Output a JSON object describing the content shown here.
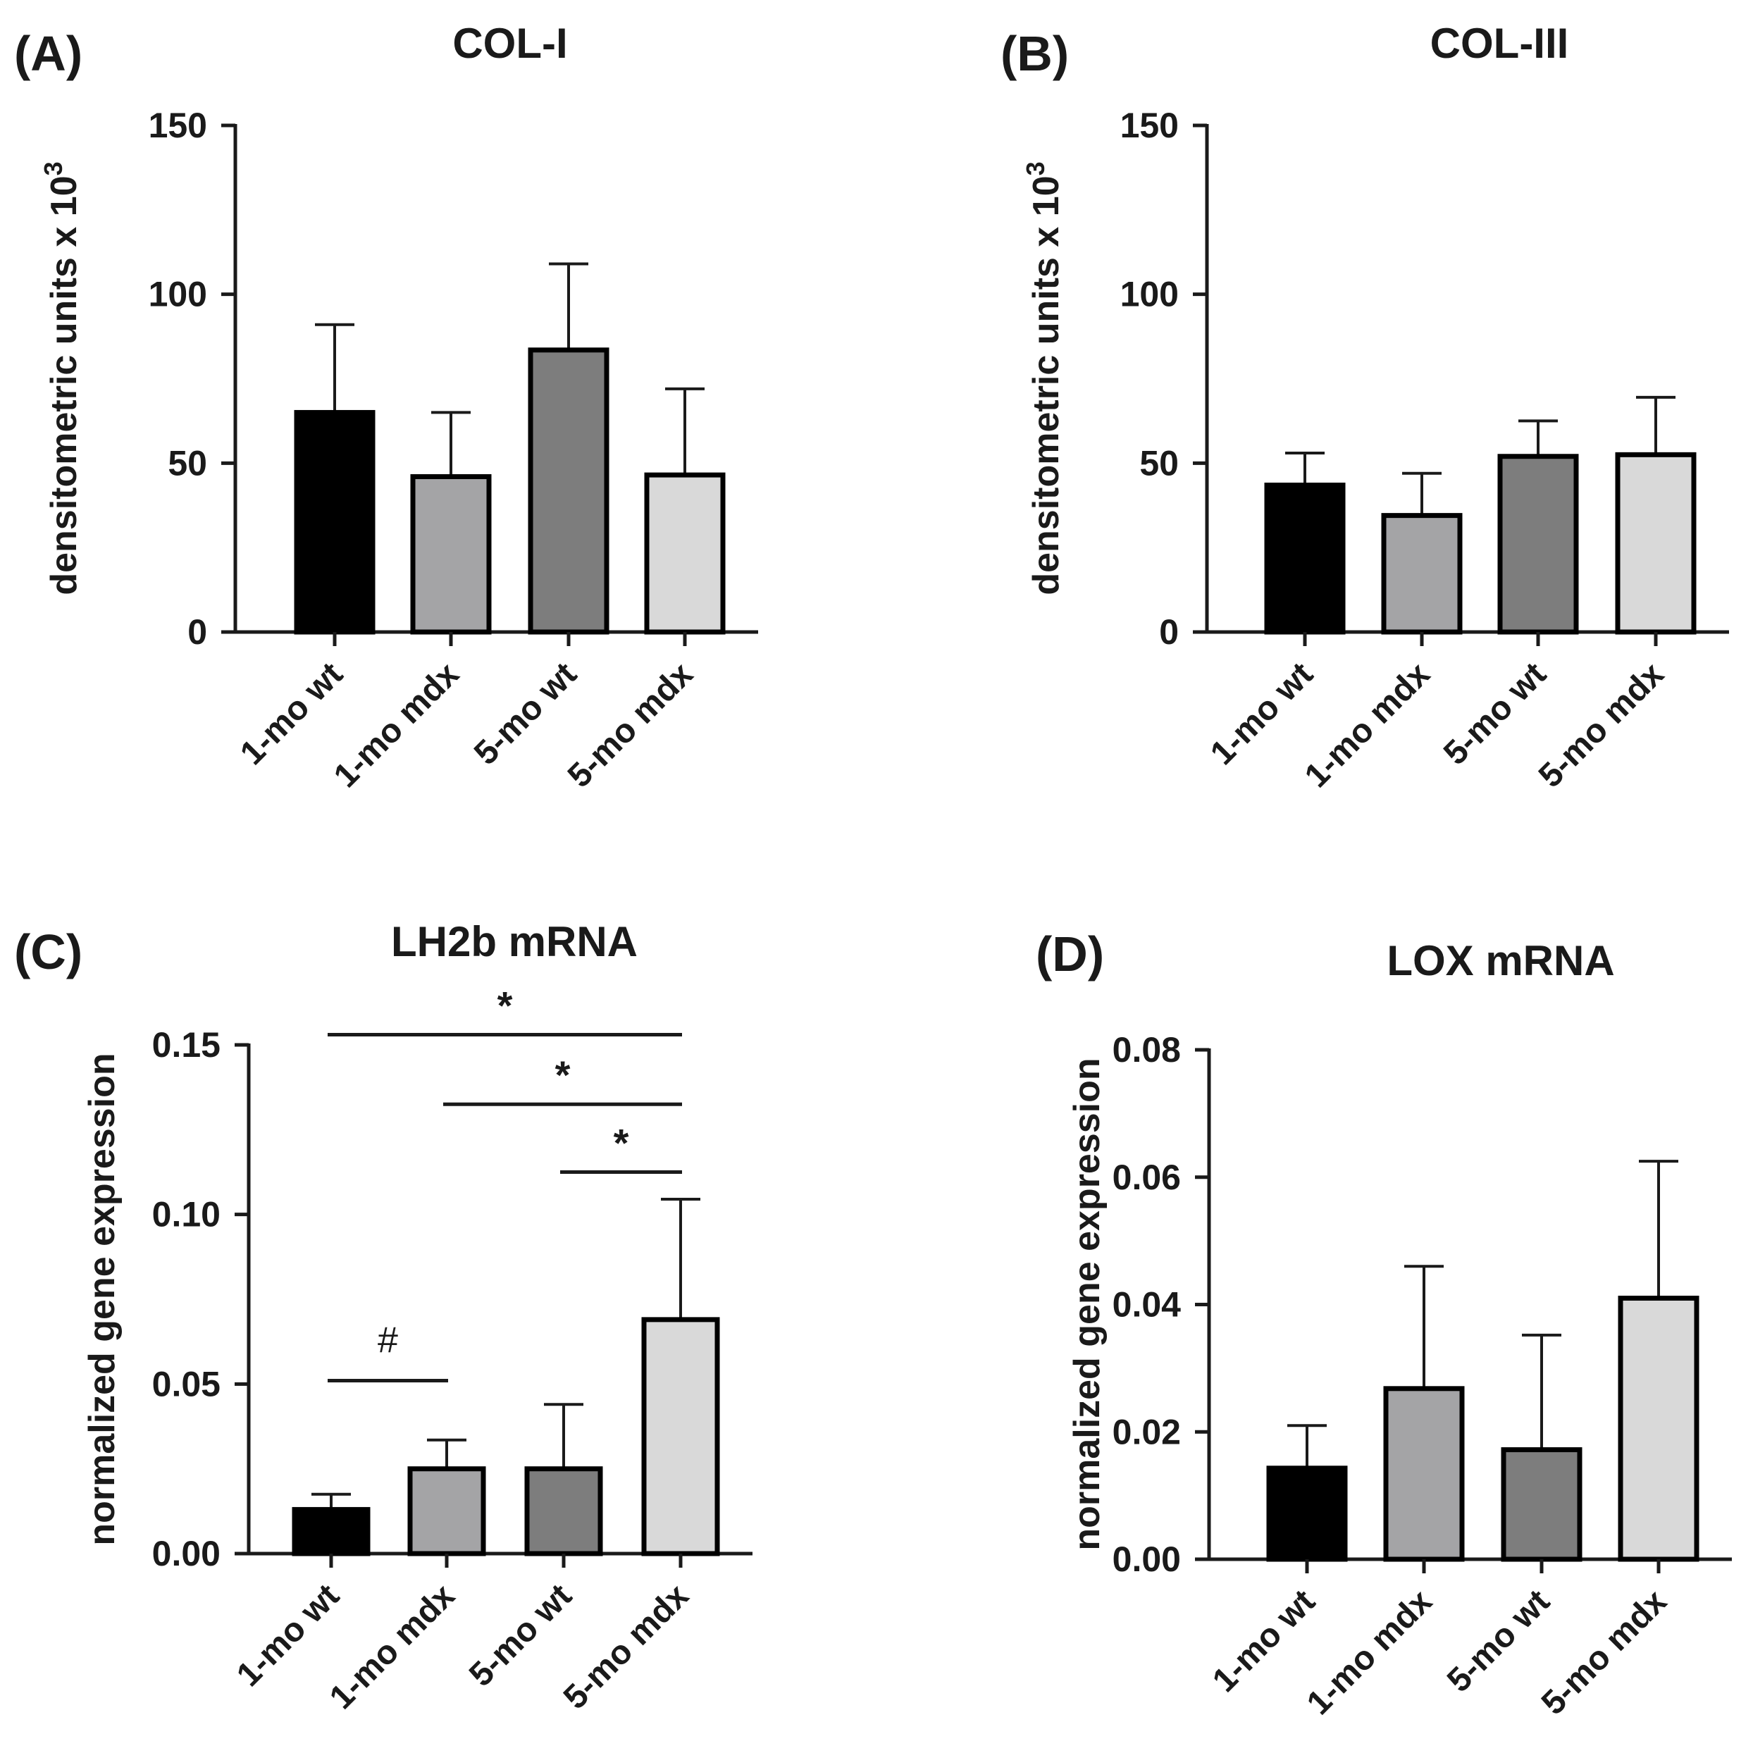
{
  "chart_data": [
    {
      "panel": "(A)",
      "type": "bar",
      "title": "COL-I",
      "ylabel": "densitometric units x 10",
      "ylabel_superscript": "3",
      "xlabel": "",
      "ylim": [
        0,
        150
      ],
      "yticks": [
        0,
        50,
        100,
        150
      ],
      "ytick_labels": [
        "0",
        "50",
        "100",
        "150"
      ],
      "categories": [
        "1-mo wt",
        "1-mo mdx",
        "5-mo wt",
        "5-mo mdx"
      ],
      "values": [
        65,
        46,
        83.5,
        46.5
      ],
      "errors": [
        26,
        19,
        25.5,
        25.5
      ],
      "colors": [
        "#000000",
        "#a4a4a6",
        "#7d7d7d",
        "#d9d9d9"
      ],
      "significance": []
    },
    {
      "panel": "(B)",
      "type": "bar",
      "title": "COL-III",
      "ylabel": "densitometric units x 10",
      "ylabel_superscript": "3",
      "xlabel": "",
      "ylim": [
        0,
        150
      ],
      "yticks": [
        0,
        50,
        100,
        150
      ],
      "ytick_labels": [
        "0",
        "50",
        "100",
        "150"
      ],
      "categories": [
        "1-mo wt",
        "1-mo mdx",
        "5-mo wt",
        "5-mo mdx"
      ],
      "values": [
        43.5,
        34.5,
        52,
        52.5
      ],
      "errors": [
        9.5,
        12.5,
        10.5,
        17
      ],
      "colors": [
        "#000000",
        "#a4a4a6",
        "#7d7d7d",
        "#d9d9d9"
      ],
      "significance": []
    },
    {
      "panel": "(C)",
      "type": "bar",
      "title": "LH2b mRNA",
      "ylabel": "normalized gene expression",
      "ylabel_superscript": "",
      "xlabel": "",
      "ylim": [
        0,
        0.15
      ],
      "yticks": [
        0,
        0.05,
        0.1,
        0.15
      ],
      "ytick_labels": [
        "0.00",
        "0.05",
        "0.10",
        "0.15"
      ],
      "categories": [
        "1-mo wt",
        "1-mo mdx",
        "5-mo wt",
        "5-mo mdx"
      ],
      "values": [
        0.013,
        0.025,
        0.025,
        0.069
      ],
      "errors": [
        0.0045,
        0.0085,
        0.019,
        0.0355
      ],
      "colors": [
        "#000000",
        "#a4a4a6",
        "#7d7d7d",
        "#d9d9d9"
      ],
      "significance": [
        {
          "from": 0,
          "to": 3,
          "y": 0.153,
          "label": "*"
        },
        {
          "from": 1,
          "to": 3,
          "y": 0.1325,
          "label": "*"
        },
        {
          "from": 2,
          "to": 3,
          "y": 0.1125,
          "label": "*"
        },
        {
          "from": 0,
          "to": 1,
          "y": 0.051,
          "label": "#"
        }
      ]
    },
    {
      "panel": "(D)",
      "type": "bar",
      "title": "LOX mRNA",
      "ylabel": "normalized gene expression",
      "ylabel_superscript": "",
      "xlabel": "",
      "ylim": [
        0,
        0.08
      ],
      "yticks": [
        0,
        0.02,
        0.04,
        0.06,
        0.08
      ],
      "ytick_labels": [
        "0.00",
        "0.02",
        "0.04",
        "0.06",
        "0.08"
      ],
      "categories": [
        "1-mo wt",
        "1-mo mdx",
        "5-mo wt",
        "5-mo mdx"
      ],
      "values": [
        0.0143,
        0.0268,
        0.0172,
        0.041
      ],
      "errors": [
        0.0067,
        0.0192,
        0.018,
        0.0215
      ],
      "colors": [
        "#000000",
        "#a4a4a6",
        "#7d7d7d",
        "#d9d9d9"
      ],
      "significance": []
    }
  ]
}
